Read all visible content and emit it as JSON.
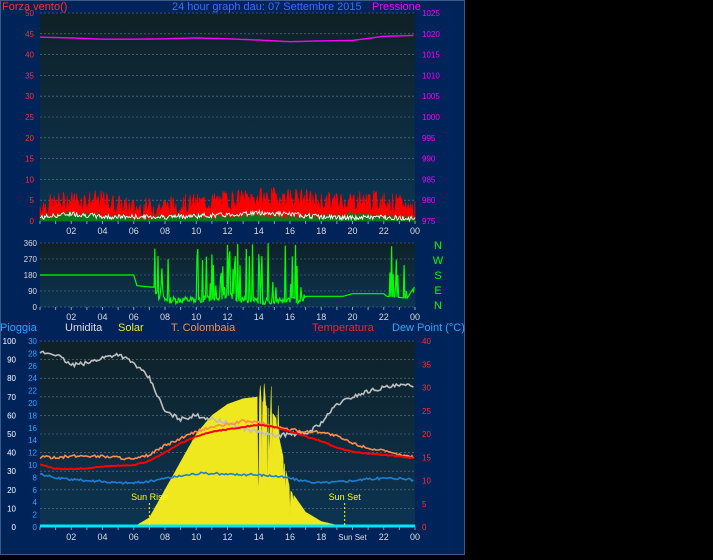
{
  "colors": {
    "background": "#000000",
    "outer_panel": "#00235a",
    "plot_top": "#0f2127",
    "plot_bottom": "#0c3452",
    "wind_avg": "#ffffff",
    "wind_gust": "#ff0000",
    "wind_fill": "#0a7a18",
    "pressure": "#ff00ff",
    "direction": "#00ff00",
    "rain": "#00e5ff",
    "humidity": "#bfbfbf",
    "solar": "#f0e81e",
    "temperature": "#ff0000",
    "t_colombaia": "#ff8c4a",
    "dew_point": "#1e7fd2",
    "sun_marker": "#ffff00",
    "axis_left_red": "#ff3030",
    "axis_cyan": "#25a8ff",
    "axis_white": "#ffffff",
    "tick_text": "#dcdcdc"
  },
  "header": {
    "left_label": "Forza vento()",
    "title": "24 hour graph dau: 07 Settembre 2015",
    "right_label": "Pressione"
  },
  "x_tick_labels": [
    "02",
    "04",
    "06",
    "08",
    "10",
    "12",
    "14",
    "16",
    "18",
    "20",
    "22",
    "00"
  ],
  "x_tick_labels_bottom": [
    "02",
    "04",
    "06",
    "08",
    "10",
    "12",
    "14",
    "16",
    "18",
    "Sun Set",
    "22",
    "00"
  ],
  "chart_data": [
    {
      "type": "line",
      "title": "24 hour graph dau: 07 Settembre 2015",
      "x_unit": "hour",
      "left_axis": {
        "label": "Forza vento()",
        "range": [
          0,
          50
        ],
        "ticks": [
          0,
          5,
          10,
          15,
          20,
          25,
          30,
          35,
          40,
          45,
          50
        ]
      },
      "right_axis": {
        "label": "Pressione",
        "range": [
          975,
          1025
        ],
        "ticks": [
          975,
          980,
          985,
          990,
          995,
          1000,
          1005,
          1010,
          1015,
          1020,
          1025
        ]
      },
      "x": [
        0,
        2,
        4,
        6,
        8,
        10,
        12,
        14,
        16,
        18,
        20,
        22,
        24
      ],
      "series": [
        {
          "name": "Pressione",
          "axis": "right",
          "values": [
            1019.2,
            1019.0,
            1018.7,
            1018.7,
            1018.8,
            1019.0,
            1018.8,
            1018.5,
            1018.1,
            1018.3,
            1018.4,
            1019.4,
            1019.6
          ]
        },
        {
          "name": "wind_gust",
          "axis": "left",
          "values": [
            3.5,
            5.0,
            4.8,
            3.0,
            3.5,
            4.2,
            5.0,
            5.5,
            5.8,
            4.5,
            5.0,
            4.8,
            3.0
          ]
        },
        {
          "name": "wind_avg",
          "axis": "left",
          "values": [
            0.8,
            1.8,
            1.0,
            1.0,
            1.0,
            1.2,
            1.5,
            2.0,
            1.6,
            1.0,
            0.7,
            1.0,
            0.5
          ]
        },
        {
          "name": "wind_fill",
          "axis": "left",
          "values": [
            0.3,
            1.0,
            0.6,
            0.0,
            0.4,
            0.5,
            0.2,
            0.6,
            0.2,
            0.3,
            0.9,
            0.3,
            0.0
          ]
        }
      ]
    },
    {
      "type": "line",
      "y_axis": {
        "range": [
          0,
          360
        ],
        "ticks": [
          0,
          90,
          180,
          270,
          360
        ]
      },
      "compass_labels": [
        "N",
        "W",
        "S",
        "E",
        "N"
      ],
      "x": [
        0,
        2,
        4,
        6,
        6.2,
        7.3,
        7.6,
        8,
        10,
        12,
        14,
        16,
        16.6,
        17,
        18,
        19.4,
        20,
        22,
        22.2,
        23.5,
        24
      ],
      "series": [
        {
          "name": "Direzione",
          "values": [
            180,
            180,
            180,
            180,
            120,
            110,
            60,
            40,
            40,
            60,
            30,
            40,
            40,
            60,
            60,
            60,
            75,
            75,
            60,
            50,
            120
          ]
        }
      ]
    },
    {
      "type": "line",
      "legend": [
        "Pioggia",
        "Umidita",
        "Solar",
        "T. Colombaia",
        "Temperatura",
        "Dew Point (°C)"
      ],
      "axes": {
        "humidity": {
          "range": [
            0,
            100
          ],
          "ticks": [
            0,
            10,
            20,
            30,
            40,
            50,
            60,
            70,
            80,
            90,
            100
          ]
        },
        "rain": {
          "range": [
            0,
            30
          ],
          "ticks": [
            0,
            2,
            4,
            6,
            8,
            10,
            12,
            14,
            16,
            18,
            20,
            22,
            24,
            26,
            28,
            30
          ]
        },
        "temperature": {
          "range": [
            0,
            40
          ],
          "ticks": [
            0,
            5,
            10,
            15,
            20,
            25,
            30,
            35,
            40
          ]
        }
      },
      "x": [
        0,
        1,
        2,
        3,
        4,
        5,
        6,
        7,
        8,
        9,
        10,
        11,
        12,
        13,
        14,
        15,
        16,
        17,
        18,
        19,
        20,
        21,
        22,
        23,
        24
      ],
      "series": [
        {
          "name": "Umidita",
          "axis": "humidity",
          "values": [
            94,
            93,
            87,
            88,
            91,
            93,
            88,
            80,
            62,
            58,
            60,
            58,
            56,
            53,
            51,
            49,
            50,
            50,
            56,
            66,
            70,
            73,
            75,
            76,
            76
          ]
        },
        {
          "name": "Solar",
          "axis": "humidity",
          "values": [
            0,
            0,
            0,
            0,
            0,
            0,
            0,
            5,
            20,
            35,
            50,
            60,
            66,
            69,
            70,
            60,
            20,
            8,
            3,
            1,
            0,
            0,
            0,
            0,
            0
          ]
        },
        {
          "name": "T. Colombaia",
          "axis": "temperature",
          "values": [
            15.0,
            15.0,
            15.2,
            15.3,
            15.2,
            15.0,
            14.5,
            15.5,
            17.5,
            19.0,
            20.5,
            21.5,
            22.0,
            22.8,
            22.5,
            21.5,
            21.0,
            20.5,
            20.5,
            19.5,
            18.0,
            17.0,
            16.3,
            15.5,
            15.0
          ]
        },
        {
          "name": "Temperatura",
          "axis": "temperature",
          "values": [
            13.5,
            12.5,
            12.5,
            12.6,
            13.0,
            13.2,
            13.3,
            14.2,
            16.0,
            18.0,
            19.5,
            20.5,
            21.0,
            21.5,
            22.0,
            21.5,
            20.5,
            19.5,
            18.5,
            17.0,
            16.2,
            15.8,
            15.5,
            15.2,
            14.8
          ]
        },
        {
          "name": "Dew Point (°C)",
          "axis": "temperature",
          "values": [
            11.5,
            10.5,
            10.2,
            10.0,
            9.8,
            9.5,
            9.5,
            9.8,
            10.5,
            11.0,
            11.5,
            11.5,
            11.3,
            11.3,
            11.2,
            11.0,
            10.5,
            9.8,
            9.5,
            9.7,
            10.0,
            10.3,
            10.5,
            10.5,
            10.0
          ]
        },
        {
          "name": "Pioggia",
          "axis": "rain",
          "values": [
            0,
            0,
            0,
            0,
            0,
            0,
            0,
            0,
            0,
            0,
            0,
            0,
            0,
            0,
            0,
            0,
            0,
            0,
            0,
            0,
            0,
            0,
            0,
            0,
            0
          ]
        }
      ],
      "annotations": [
        {
          "text": "Sun Rise",
          "x": 7.0
        },
        {
          "text": "Sun Set",
          "x": 19.5
        }
      ]
    }
  ]
}
